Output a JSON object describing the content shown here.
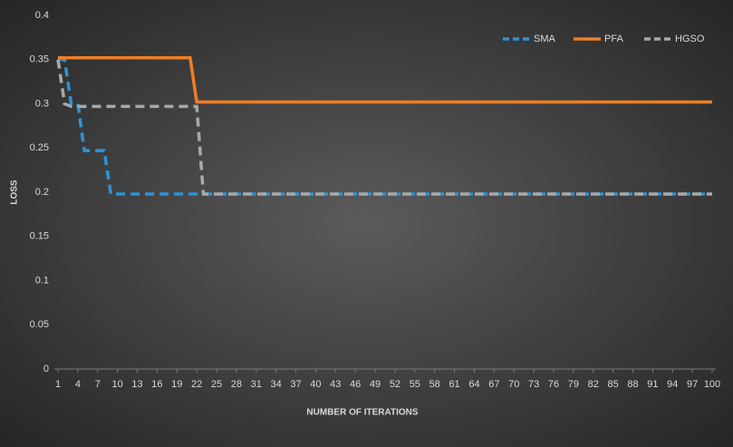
{
  "chart_data": {
    "type": "line",
    "y_label": "LOSS",
    "x_label": "NUMBER OF ITERATIONS",
    "x": [
      1,
      2,
      3,
      4,
      5,
      6,
      7,
      8,
      9,
      10,
      11,
      12,
      13,
      14,
      15,
      16,
      17,
      18,
      19,
      20,
      21,
      22,
      23,
      24,
      25,
      26,
      27,
      28,
      29,
      30,
      31,
      32,
      33,
      34,
      35,
      36,
      37,
      38,
      39,
      40,
      41,
      42,
      43,
      44,
      45,
      46,
      47,
      48,
      49,
      50,
      51,
      52,
      53,
      54,
      55,
      56,
      57,
      58,
      59,
      60,
      61,
      62,
      63,
      64,
      65,
      66,
      67,
      68,
      69,
      70,
      71,
      72,
      73,
      74,
      75,
      76,
      77,
      78,
      79,
      80,
      81,
      82,
      83,
      84,
      85,
      86,
      87,
      88,
      89,
      90,
      91,
      92,
      93,
      94,
      95,
      96,
      97,
      98,
      99,
      100
    ],
    "xlim": [
      1,
      100
    ],
    "xticks": [
      1,
      4,
      7,
      10,
      13,
      16,
      19,
      22,
      25,
      28,
      31,
      34,
      37,
      40,
      43,
      46,
      49,
      52,
      55,
      58,
      61,
      64,
      67,
      70,
      73,
      76,
      79,
      82,
      85,
      88,
      91,
      94,
      97,
      100
    ],
    "ylim": [
      0,
      0.4
    ],
    "yticks": [
      0,
      0.05,
      0.1,
      0.15,
      0.2,
      0.25,
      0.3,
      0.35,
      0.4
    ],
    "grid": false,
    "legend": "top-right",
    "series": [
      {
        "name": "SMA",
        "color": "#2b93d9",
        "style": "dashed",
        "values": [
          0.35,
          0.35,
          0.3,
          0.3,
          0.247,
          0.247,
          0.247,
          0.247,
          0.198,
          0.198,
          0.198,
          0.198,
          0.198,
          0.198,
          0.198,
          0.198,
          0.198,
          0.198,
          0.198,
          0.198,
          0.198,
          0.198,
          0.198,
          0.198,
          0.198,
          0.198,
          0.198,
          0.198,
          0.198,
          0.198,
          0.198,
          0.198,
          0.198,
          0.198,
          0.198,
          0.198,
          0.198,
          0.198,
          0.198,
          0.198,
          0.198,
          0.198,
          0.198,
          0.198,
          0.198,
          0.198,
          0.198,
          0.198,
          0.198,
          0.198,
          0.198,
          0.198,
          0.198,
          0.198,
          0.198,
          0.198,
          0.198,
          0.198,
          0.198,
          0.198,
          0.198,
          0.198,
          0.198,
          0.198,
          0.198,
          0.198,
          0.198,
          0.198,
          0.198,
          0.198,
          0.198,
          0.198,
          0.198,
          0.198,
          0.198,
          0.198,
          0.198,
          0.198,
          0.198,
          0.198,
          0.198,
          0.198,
          0.198,
          0.198,
          0.198,
          0.198,
          0.198,
          0.198,
          0.198,
          0.198,
          0.198,
          0.198,
          0.198,
          0.198,
          0.198,
          0.198,
          0.198,
          0.198,
          0.198,
          0.198
        ]
      },
      {
        "name": "PFA",
        "color": "#f07e26",
        "style": "solid",
        "values": [
          0.352,
          0.352,
          0.352,
          0.352,
          0.352,
          0.352,
          0.352,
          0.352,
          0.352,
          0.352,
          0.352,
          0.352,
          0.352,
          0.352,
          0.352,
          0.352,
          0.352,
          0.352,
          0.352,
          0.352,
          0.352,
          0.302,
          0.302,
          0.302,
          0.302,
          0.302,
          0.302,
          0.302,
          0.302,
          0.302,
          0.302,
          0.302,
          0.302,
          0.302,
          0.302,
          0.302,
          0.302,
          0.302,
          0.302,
          0.302,
          0.302,
          0.302,
          0.302,
          0.302,
          0.302,
          0.302,
          0.302,
          0.302,
          0.302,
          0.302,
          0.302,
          0.302,
          0.302,
          0.302,
          0.302,
          0.302,
          0.302,
          0.302,
          0.302,
          0.302,
          0.302,
          0.302,
          0.302,
          0.302,
          0.302,
          0.302,
          0.302,
          0.302,
          0.302,
          0.302,
          0.302,
          0.302,
          0.302,
          0.302,
          0.302,
          0.302,
          0.302,
          0.302,
          0.302,
          0.302,
          0.302,
          0.302,
          0.302,
          0.302,
          0.302,
          0.302,
          0.302,
          0.302,
          0.302,
          0.302,
          0.302,
          0.302,
          0.302,
          0.302,
          0.302,
          0.302,
          0.302,
          0.302,
          0.302,
          0.302
        ]
      },
      {
        "name": "HGSO",
        "color": "#a8a8a8",
        "style": "dashed",
        "values": [
          0.35,
          0.3,
          0.297,
          0.297,
          0.297,
          0.297,
          0.297,
          0.297,
          0.297,
          0.297,
          0.297,
          0.297,
          0.297,
          0.297,
          0.297,
          0.297,
          0.297,
          0.297,
          0.297,
          0.297,
          0.297,
          0.297,
          0.198,
          0.198,
          0.198,
          0.198,
          0.198,
          0.198,
          0.198,
          0.198,
          0.198,
          0.198,
          0.198,
          0.198,
          0.198,
          0.198,
          0.198,
          0.198,
          0.198,
          0.198,
          0.198,
          0.198,
          0.198,
          0.198,
          0.198,
          0.198,
          0.198,
          0.198,
          0.198,
          0.198,
          0.198,
          0.198,
          0.198,
          0.198,
          0.198,
          0.198,
          0.198,
          0.198,
          0.198,
          0.198,
          0.198,
          0.198,
          0.198,
          0.198,
          0.198,
          0.198,
          0.198,
          0.198,
          0.198,
          0.198,
          0.198,
          0.198,
          0.198,
          0.198,
          0.198,
          0.198,
          0.198,
          0.198,
          0.198,
          0.198,
          0.198,
          0.198,
          0.198,
          0.198,
          0.198,
          0.198,
          0.198,
          0.198,
          0.198,
          0.198,
          0.198,
          0.198,
          0.198,
          0.198,
          0.198,
          0.198,
          0.198,
          0.198,
          0.198,
          0.198
        ]
      }
    ]
  }
}
